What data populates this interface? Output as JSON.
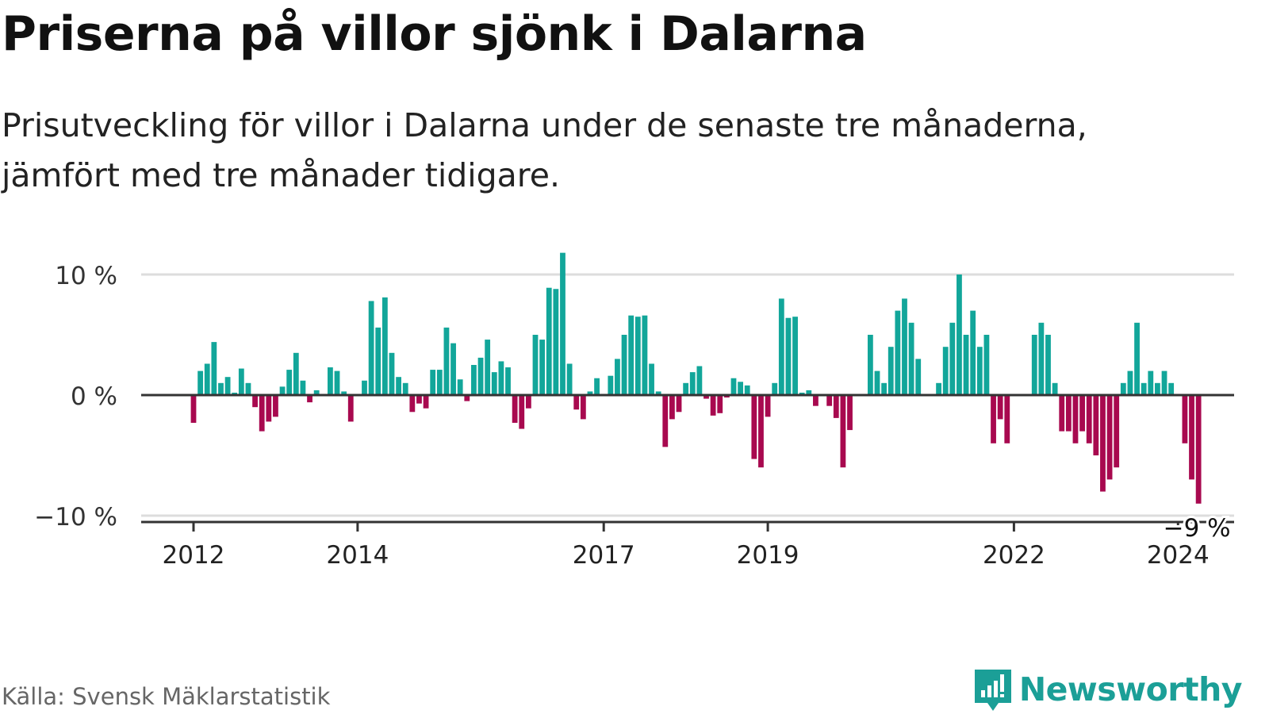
{
  "title": "Priserna på villor sjönk i Dalarna",
  "subtitle_line1": "Prisutveckling för villor i Dalarna under de senaste tre månaderna,",
  "subtitle_line2": "jämfört med tre månader tidigare.",
  "source": "Källa: Svensk Mäklarstatistik",
  "brand": "Newsworthy",
  "colors": {
    "positive": "#12a69a",
    "negative": "#a8094f",
    "axis": "#333333",
    "grid": "#dddddd",
    "brand": "#1b9f97"
  },
  "chart_data": {
    "type": "bar",
    "ylim": [
      -10,
      10
    ],
    "yticks": [
      {
        "value": 10,
        "label": "10 %"
      },
      {
        "value": 0,
        "label": "0 %"
      },
      {
        "value": -10,
        "label": "−10 %"
      }
    ],
    "xticks": [
      {
        "index": 0,
        "label": "2012"
      },
      {
        "index": 24,
        "label": "2014"
      },
      {
        "index": 60,
        "label": "2017"
      },
      {
        "index": 84,
        "label": "2019"
      },
      {
        "index": 120,
        "label": "2022"
      },
      {
        "index": 144,
        "label": "2024"
      }
    ],
    "start_label": "2012",
    "end_label": "2024",
    "values": [
      -2.3,
      2.0,
      2.6,
      4.4,
      1.0,
      1.5,
      0.2,
      2.2,
      1.0,
      -1.0,
      -3.0,
      -2.2,
      -1.8,
      0.7,
      2.1,
      3.5,
      1.2,
      -0.6,
      0.4,
      0.0,
      2.3,
      2.0,
      0.3,
      -2.2,
      0.0,
      1.2,
      7.8,
      5.6,
      8.1,
      3.5,
      1.5,
      1.0,
      -1.4,
      -0.7,
      -1.1,
      2.1,
      2.1,
      5.6,
      4.3,
      1.3,
      -0.5,
      2.5,
      3.1,
      4.6,
      1.9,
      2.8,
      2.3,
      -2.3,
      -2.8,
      -1.1,
      5.0,
      4.6,
      8.9,
      8.8,
      11.8,
      2.6,
      -1.2,
      -2.0,
      0.3,
      1.4,
      0.0,
      1.6,
      3.0,
      5.0,
      6.6,
      6.5,
      6.6,
      2.6,
      0.3,
      -4.3,
      -2.0,
      -1.4,
      1.0,
      1.9,
      2.4,
      -0.3,
      -1.7,
      -1.5,
      -0.2,
      1.4,
      1.1,
      0.8,
      -5.3,
      -6.0,
      -1.8,
      1.0,
      8.0,
      6.4,
      6.5,
      0.2,
      0.4,
      -0.9,
      0.0,
      -0.9,
      -1.9,
      -6.0,
      -2.9,
      0.0,
      0.0,
      5.0,
      2.0,
      1.0,
      4.0,
      7.0,
      8.0,
      6.0,
      3.0,
      0.0,
      0.0,
      1.0,
      4.0,
      6.0,
      10.0,
      5.0,
      7.0,
      4.0,
      5.0,
      -4.0,
      -2.0,
      -4.0,
      0.0,
      0.0,
      0.0,
      5.0,
      6.0,
      5.0,
      1.0,
      -3.0,
      -3.0,
      -4.0,
      -3.0,
      -4.0,
      -5.0,
      -8.0,
      -7.0,
      -6.0,
      1.0,
      2.0,
      6.0,
      1.0,
      2.0,
      1.0,
      2.0,
      1.0,
      0.0,
      -4.0,
      -7.0,
      -9.0
    ],
    "last_label": "−9 %"
  }
}
